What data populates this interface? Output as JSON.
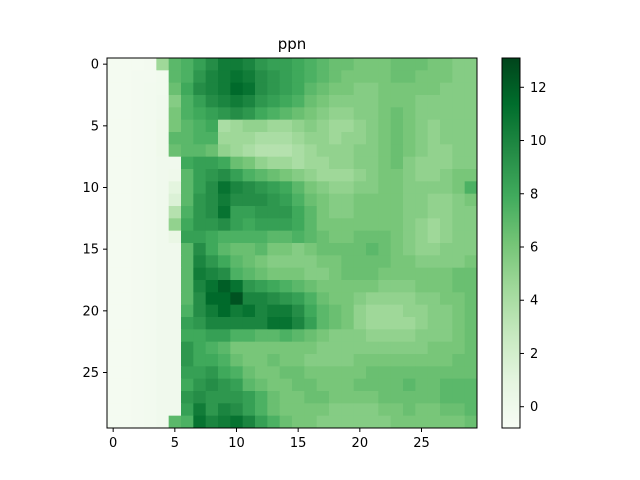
{
  "chart_data": {
    "type": "heatmap",
    "title": "ppn",
    "rows": 30,
    "cols": 30,
    "colormap": "Greens",
    "color_range": [
      -0.8,
      13.1
    ],
    "x_ticks": [
      0,
      5,
      10,
      15,
      20,
      25
    ],
    "y_ticks": [
      0,
      5,
      10,
      15,
      20,
      25
    ],
    "colorbar_ticks": [
      0,
      2,
      4,
      6,
      8,
      10,
      12
    ],
    "values": [
      [
        -0.5,
        -0.5,
        -0.5,
        -0.4,
        4.5,
        7.0,
        7.5,
        8.5,
        9.5,
        10.5,
        10.5,
        10.0,
        9.0,
        8.5,
        8.5,
        8.0,
        7.5,
        7.0,
        6.5,
        6.5,
        6.0,
        6.0,
        6.0,
        6.5,
        6.5,
        6.5,
        6.0,
        6.0,
        5.5,
        5.5
      ],
      [
        -0.5,
        -0.5,
        -0.4,
        -0.4,
        -0.2,
        7.0,
        7.5,
        9.0,
        10.0,
        10.5,
        11.0,
        10.5,
        9.5,
        9.0,
        8.5,
        8.0,
        7.5,
        7.0,
        6.5,
        6.0,
        6.0,
        6.0,
        6.0,
        6.5,
        6.5,
        6.0,
        6.0,
        6.0,
        5.5,
        5.5
      ],
      [
        -0.5,
        -0.5,
        -0.4,
        -0.3,
        -0.2,
        6.5,
        8.0,
        9.5,
        10.0,
        10.5,
        11.5,
        11.0,
        9.5,
        9.0,
        8.5,
        8.0,
        7.0,
        6.5,
        6.0,
        6.0,
        5.5,
        5.5,
        6.0,
        6.0,
        6.0,
        6.0,
        6.0,
        5.5,
        5.5,
        5.5
      ],
      [
        -0.5,
        -0.5,
        -0.4,
        -0.3,
        -0.1,
        5.5,
        7.5,
        8.5,
        9.5,
        10.0,
        10.5,
        10.0,
        9.0,
        8.5,
        8.0,
        7.5,
        6.5,
        6.0,
        5.5,
        5.5,
        5.5,
        5.5,
        6.0,
        6.0,
        6.0,
        5.5,
        5.5,
        5.5,
        5.5,
        5.5
      ],
      [
        -0.5,
        -0.5,
        -0.4,
        -0.3,
        -0.1,
        6.0,
        7.5,
        8.0,
        8.5,
        9.0,
        9.5,
        9.0,
        8.0,
        7.5,
        7.0,
        6.5,
        6.0,
        5.5,
        5.0,
        5.0,
        5.5,
        5.5,
        6.0,
        6.5,
        6.0,
        5.5,
        5.5,
        5.5,
        5.5,
        5.5
      ],
      [
        -0.5,
        -0.5,
        -0.4,
        -0.3,
        0.0,
        6.0,
        7.0,
        7.5,
        8.0,
        4.0,
        4.5,
        5.0,
        5.0,
        4.5,
        4.5,
        5.0,
        5.5,
        5.0,
        4.5,
        4.5,
        5.0,
        5.5,
        6.0,
        6.5,
        6.0,
        5.5,
        5.0,
        5.5,
        5.5,
        5.5
      ],
      [
        -0.5,
        -0.5,
        -0.4,
        -0.3,
        0.0,
        7.0,
        7.0,
        7.5,
        7.5,
        4.5,
        4.5,
        4.5,
        4.0,
        4.0,
        4.0,
        4.5,
        5.0,
        5.0,
        4.5,
        5.0,
        5.0,
        5.5,
        6.0,
        6.5,
        6.0,
        5.5,
        5.0,
        5.5,
        5.5,
        5.5
      ],
      [
        -0.5,
        -0.5,
        -0.4,
        -0.3,
        0.0,
        6.5,
        7.0,
        7.0,
        6.5,
        5.0,
        4.5,
        4.0,
        3.5,
        3.5,
        3.5,
        4.0,
        4.5,
        5.0,
        5.0,
        5.0,
        5.5,
        5.5,
        6.0,
        6.5,
        6.0,
        5.5,
        5.0,
        5.0,
        5.5,
        5.5
      ],
      [
        -0.5,
        -0.5,
        -0.4,
        -0.3,
        -0.1,
        -0.1,
        8.0,
        8.5,
        8.5,
        8.0,
        6.5,
        6.0,
        5.0,
        4.5,
        4.5,
        4.0,
        4.5,
        4.5,
        5.0,
        5.0,
        5.5,
        5.5,
        6.0,
        6.5,
        5.5,
        5.0,
        5.0,
        5.0,
        5.5,
        5.5
      ],
      [
        -0.5,
        -0.5,
        -0.4,
        -0.3,
        -0.1,
        0.0,
        7.0,
        8.5,
        9.0,
        9.5,
        8.5,
        7.5,
        7.0,
        6.5,
        6.0,
        5.5,
        5.0,
        4.5,
        4.5,
        4.5,
        5.0,
        5.5,
        6.0,
        6.0,
        5.5,
        5.0,
        5.0,
        5.5,
        6.0,
        6.0
      ],
      [
        -0.5,
        -0.5,
        -0.4,
        -0.3,
        -0.1,
        1.0,
        7.0,
        8.5,
        9.5,
        11.0,
        10.0,
        9.5,
        9.0,
        8.5,
        8.0,
        7.0,
        6.0,
        5.5,
        5.0,
        5.0,
        5.5,
        5.5,
        6.0,
        6.0,
        5.5,
        5.5,
        5.5,
        5.5,
        6.0,
        7.5
      ],
      [
        -0.5,
        -0.5,
        -0.4,
        -0.3,
        -0.1,
        1.5,
        7.0,
        9.0,
        9.5,
        10.5,
        9.5,
        9.5,
        9.5,
        9.0,
        8.5,
        7.5,
        6.5,
        6.0,
        5.5,
        5.5,
        6.0,
        6.0,
        6.0,
        6.0,
        5.5,
        5.5,
        5.0,
        5.0,
        5.5,
        6.0
      ],
      [
        -0.5,
        -0.5,
        -0.4,
        -0.3,
        -0.1,
        3.5,
        7.5,
        9.0,
        9.5,
        11.0,
        8.5,
        8.5,
        9.0,
        9.0,
        9.0,
        8.0,
        7.0,
        6.0,
        5.5,
        5.5,
        6.0,
        6.0,
        6.0,
        6.0,
        5.5,
        5.5,
        5.0,
        5.0,
        5.5,
        5.5
      ],
      [
        -0.5,
        -0.5,
        -0.4,
        -0.3,
        -0.1,
        5.0,
        8.0,
        9.0,
        9.0,
        9.5,
        8.5,
        8.0,
        8.5,
        8.5,
        8.5,
        8.0,
        7.0,
        6.0,
        6.0,
        6.0,
        6.0,
        6.0,
        6.0,
        6.0,
        5.5,
        5.0,
        4.5,
        5.0,
        5.5,
        5.5
      ],
      [
        -0.5,
        -0.5,
        -0.4,
        -0.3,
        -0.1,
        0.5,
        8.5,
        8.5,
        8.0,
        7.5,
        7.5,
        7.5,
        7.5,
        7.0,
        7.0,
        7.5,
        7.0,
        6.5,
        6.0,
        6.0,
        6.5,
        6.5,
        6.5,
        6.0,
        5.5,
        5.0,
        4.5,
        5.0,
        5.5,
        5.5
      ],
      [
        -0.5,
        -0.5,
        -0.4,
        -0.3,
        -0.1,
        -0.1,
        7.0,
        9.5,
        8.0,
        7.0,
        6.5,
        6.5,
        7.0,
        6.0,
        6.0,
        5.5,
        6.0,
        6.5,
        6.5,
        6.5,
        6.5,
        7.0,
        6.5,
        6.0,
        5.5,
        5.0,
        5.0,
        5.5,
        5.5,
        5.5
      ],
      [
        -0.5,
        -0.5,
        -0.4,
        -0.3,
        -0.1,
        -0.1,
        7.0,
        10.0,
        9.0,
        8.0,
        7.0,
        6.5,
        6.0,
        5.5,
        5.5,
        5.5,
        5.5,
        6.0,
        6.0,
        6.5,
        6.5,
        6.5,
        6.5,
        6.0,
        6.0,
        5.5,
        5.5,
        5.5,
        5.5,
        6.0
      ],
      [
        -0.5,
        -0.5,
        -0.4,
        -0.3,
        -0.1,
        -0.1,
        7.0,
        10.5,
        10.0,
        9.5,
        7.5,
        7.0,
        6.5,
        6.0,
        6.0,
        6.0,
        5.5,
        5.5,
        6.0,
        6.5,
        6.5,
        6.5,
        6.0,
        6.0,
        6.0,
        6.0,
        6.0,
        6.0,
        6.5,
        6.5
      ],
      [
        -0.5,
        -0.5,
        -0.4,
        -0.3,
        -0.1,
        -0.1,
        7.0,
        10.0,
        11.0,
        12.0,
        11.0,
        9.0,
        8.5,
        8.0,
        7.5,
        7.0,
        6.5,
        6.0,
        6.0,
        6.0,
        6.0,
        6.0,
        5.5,
        5.5,
        5.5,
        6.0,
        6.0,
        6.0,
        6.5,
        6.5
      ],
      [
        -0.5,
        -0.5,
        -0.4,
        -0.3,
        -0.1,
        -0.1,
        7.0,
        9.5,
        11.5,
        11.5,
        12.5,
        10.0,
        10.0,
        9.5,
        9.0,
        8.5,
        7.5,
        6.5,
        6.0,
        6.0,
        5.5,
        5.0,
        5.0,
        5.0,
        5.0,
        5.5,
        5.5,
        6.0,
        6.0,
        6.5
      ],
      [
        -0.5,
        -0.5,
        -0.4,
        -0.3,
        -0.1,
        -0.1,
        7.5,
        9.5,
        10.5,
        11.5,
        10.5,
        11.0,
        10.0,
        10.5,
        10.5,
        9.5,
        8.0,
        7.0,
        6.5,
        6.0,
        5.0,
        4.5,
        4.5,
        4.5,
        5.0,
        5.0,
        5.5,
        5.5,
        6.0,
        6.5
      ],
      [
        -0.5,
        -0.5,
        -0.4,
        -0.3,
        -0.1,
        -0.1,
        8.5,
        9.0,
        10.0,
        10.0,
        10.0,
        10.0,
        10.0,
        11.0,
        11.0,
        10.0,
        8.5,
        7.0,
        6.5,
        6.0,
        5.0,
        4.5,
        4.5,
        4.5,
        4.5,
        5.0,
        5.5,
        5.5,
        6.0,
        6.5
      ],
      [
        -0.5,
        -0.5,
        -0.4,
        -0.3,
        -0.1,
        -0.1,
        8.0,
        8.0,
        8.5,
        8.5,
        7.5,
        7.5,
        7.0,
        7.0,
        7.5,
        7.0,
        6.5,
        6.0,
        5.5,
        5.5,
        5.5,
        5.0,
        5.0,
        5.0,
        5.0,
        5.5,
        5.5,
        5.5,
        6.0,
        6.5
      ],
      [
        -0.5,
        -0.5,
        -0.4,
        -0.3,
        -0.1,
        -0.1,
        9.0,
        8.0,
        7.5,
        7.0,
        6.0,
        6.0,
        6.0,
        6.0,
        6.0,
        6.0,
        6.0,
        5.5,
        5.5,
        5.5,
        5.5,
        5.5,
        5.5,
        5.5,
        5.5,
        5.5,
        6.0,
        6.0,
        6.0,
        6.5
      ],
      [
        -0.5,
        -0.5,
        -0.4,
        -0.3,
        -0.1,
        -0.1,
        9.0,
        8.0,
        8.0,
        7.5,
        6.5,
        6.0,
        6.0,
        6.5,
        6.0,
        6.0,
        5.5,
        5.5,
        5.5,
        5.5,
        6.0,
        6.0,
        6.0,
        6.0,
        6.0,
        6.0,
        6.0,
        6.0,
        6.5,
        6.5
      ],
      [
        -0.5,
        -0.5,
        -0.4,
        -0.3,
        -0.1,
        -0.1,
        8.5,
        8.5,
        9.0,
        8.0,
        7.5,
        6.5,
        6.0,
        6.0,
        6.5,
        6.5,
        6.0,
        6.0,
        6.0,
        6.0,
        6.0,
        6.5,
        6.5,
        6.5,
        6.5,
        6.5,
        6.5,
        6.5,
        6.5,
        6.5
      ],
      [
        -0.5,
        -0.5,
        -0.4,
        -0.3,
        -0.1,
        -0.1,
        8.0,
        9.0,
        9.5,
        9.0,
        8.5,
        7.0,
        6.5,
        6.0,
        6.0,
        6.5,
        6.5,
        6.0,
        6.0,
        6.0,
        6.5,
        6.5,
        6.5,
        6.5,
        7.0,
        6.5,
        6.5,
        7.0,
        7.0,
        7.0
      ],
      [
        -0.5,
        -0.5,
        -0.4,
        -0.3,
        -0.1,
        -0.1,
        9.0,
        9.5,
        9.0,
        9.0,
        9.0,
        8.5,
        7.5,
        6.5,
        6.0,
        6.0,
        6.5,
        6.5,
        6.0,
        6.0,
        6.0,
        6.0,
        6.5,
        6.5,
        6.5,
        6.5,
        6.5,
        7.0,
        7.0,
        7.0
      ],
      [
        -0.5,
        -0.5,
        -0.4,
        -0.3,
        -0.1,
        -0.1,
        8.5,
        10.5,
        9.0,
        10.0,
        9.5,
        8.5,
        7.5,
        6.5,
        6.0,
        6.0,
        6.0,
        6.0,
        5.5,
        5.5,
        5.5,
        5.5,
        6.0,
        6.0,
        6.5,
        6.0,
        6.0,
        6.5,
        6.5,
        7.0
      ],
      [
        -0.5,
        -0.5,
        -0.4,
        -0.3,
        -0.1,
        7.0,
        7.5,
        11.0,
        10.0,
        10.5,
        11.0,
        10.0,
        8.5,
        7.5,
        6.5,
        6.0,
        6.0,
        5.5,
        5.5,
        5.5,
        5.5,
        5.5,
        5.5,
        6.0,
        6.0,
        6.0,
        6.0,
        6.0,
        6.0,
        6.5
      ]
    ]
  }
}
